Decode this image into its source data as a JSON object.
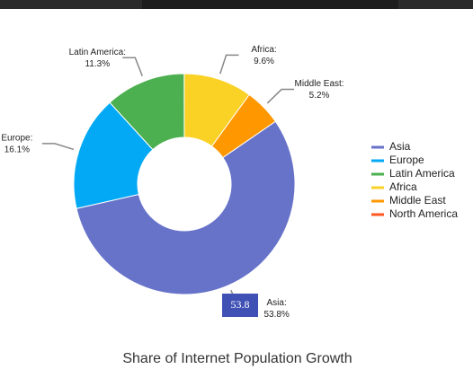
{
  "chart_data": {
    "type": "donut",
    "title": "Share of Internet Population Growth",
    "categories": [
      "Asia",
      "Europe",
      "Latin America",
      "Africa",
      "Middle East",
      "North America"
    ],
    "values": [
      53.8,
      16.1,
      11.3,
      9.6,
      5.2,
      0
    ],
    "value_labels": [
      "53.8%",
      "16.1%",
      "11.3%",
      "9.6%",
      "5.2%",
      null
    ],
    "slice_labels": [
      "Asia:",
      "Europe:",
      "Latin America:",
      "Africa:",
      "Middle East:",
      null
    ],
    "colors": [
      "#6673c9",
      "#03a9f4",
      "#4caf50",
      "#fad125",
      "#ff9800",
      "#ff5722"
    ],
    "legend": "right",
    "tooltip": "53.8"
  }
}
